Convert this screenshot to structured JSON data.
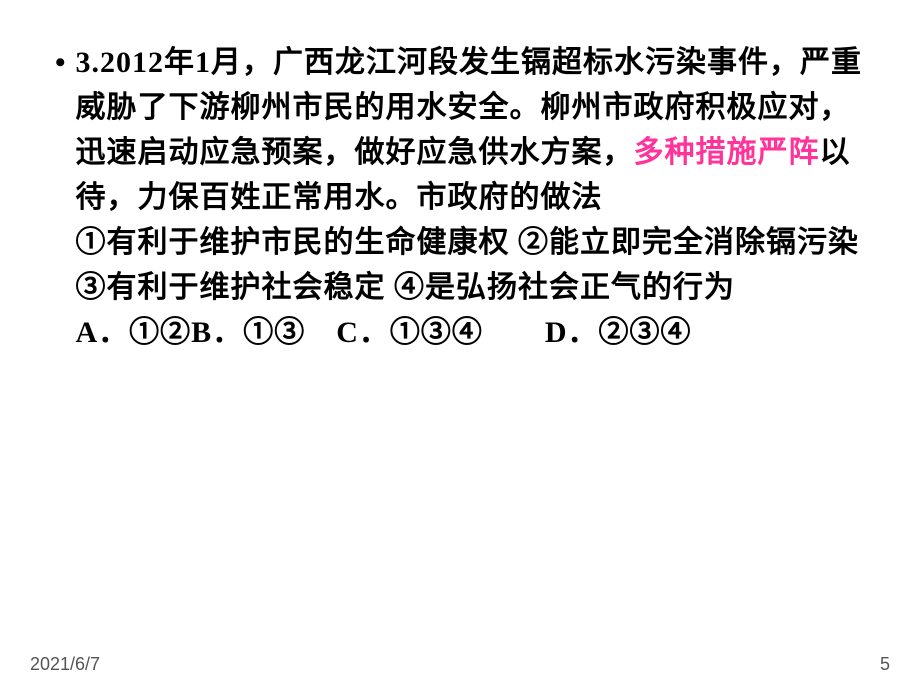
{
  "bullet_char": "•",
  "question": {
    "prefix": "3.2012年1月，广西龙江河段发生镉超标水污染事件，严重威胁了下游柳州市民的用水安全。柳州市政府积极应对，迅速启动应急预案，做好应急供水方案，",
    "highlight": "多种措施严阵",
    "middle": "以待，力保百姓正常用水。市政府的做法",
    "statements": "①有利于维护市民的生命健康权 ②能立即完全消除镉污染③有利于维护社会稳定 ④是弘扬社会正气的行为",
    "options": "A．①②B．①③　C．①③④　　D．②③④"
  },
  "footer": {
    "date": "2021/6/7",
    "page": "5"
  },
  "colors": {
    "background": "#ffffff",
    "text": "#000000",
    "highlight": "#ff3399",
    "footer": "#555555"
  },
  "typography": {
    "main_fontsize": 30,
    "footer_fontsize": 18,
    "font_weight": "bold",
    "line_height": 1.5
  }
}
